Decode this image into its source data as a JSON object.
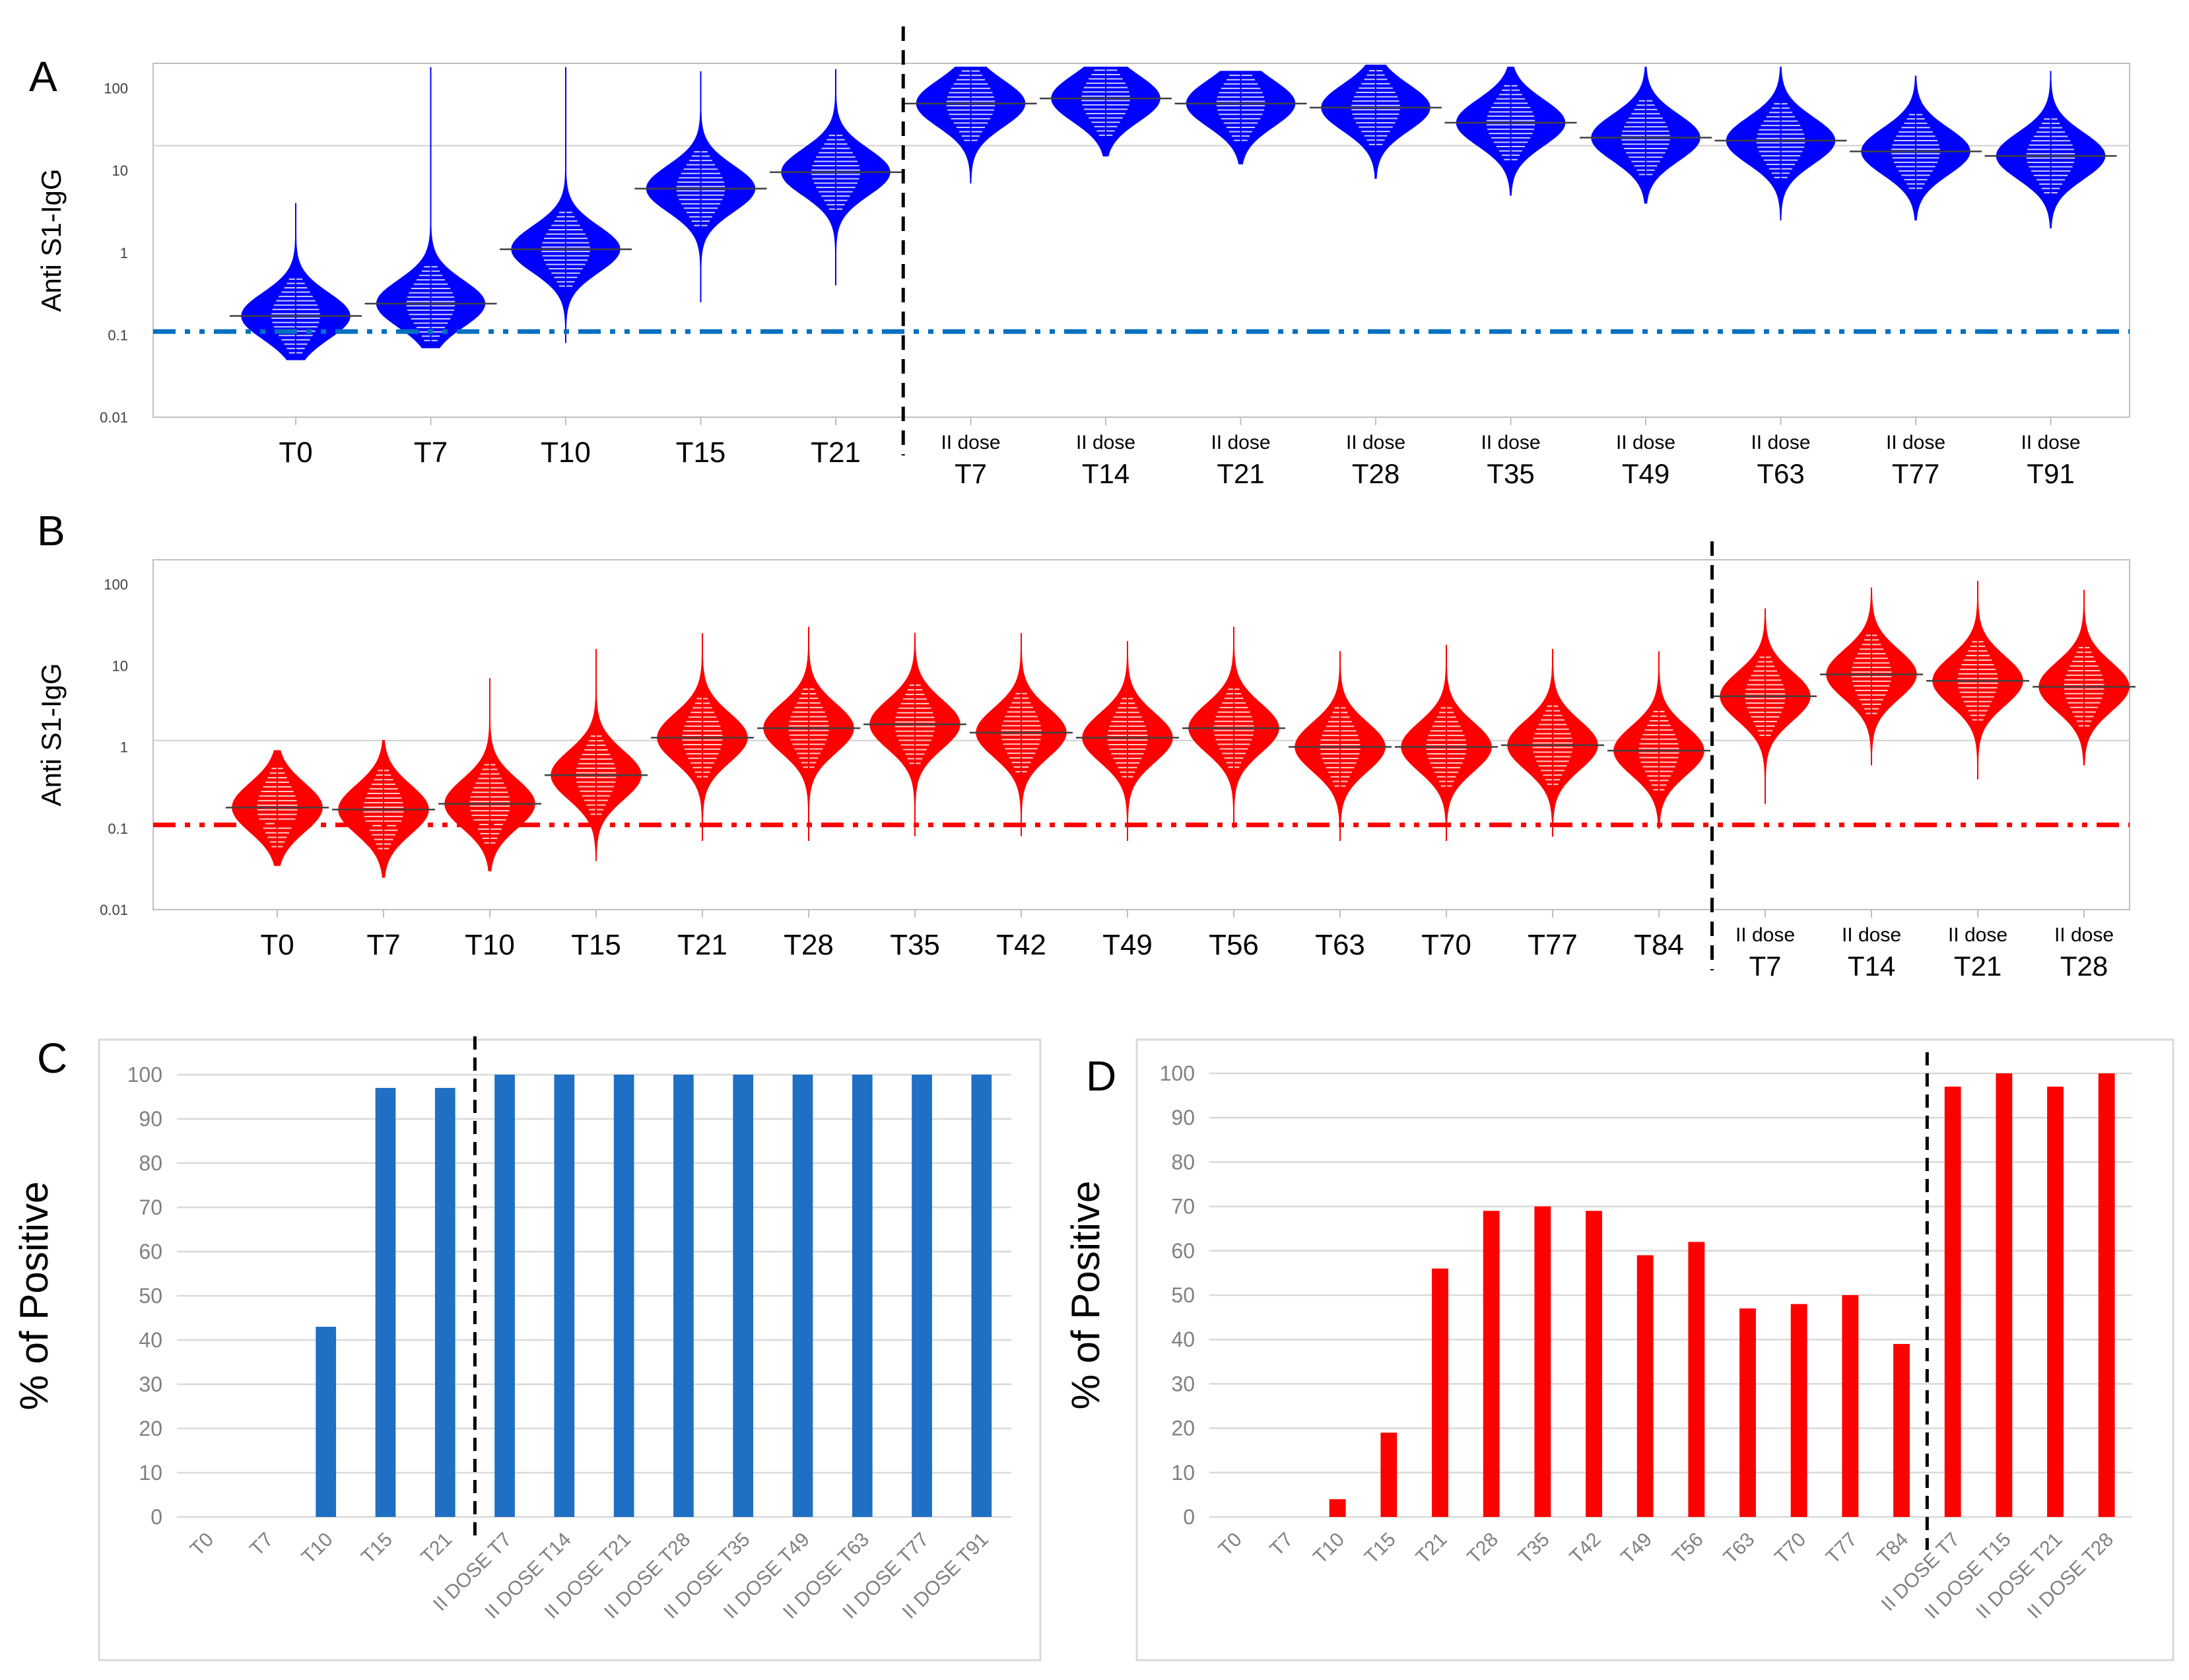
{
  "panels": {
    "A": {
      "letter": "A"
    },
    "B": {
      "letter": "B"
    },
    "C": {
      "letter": "C"
    },
    "D": {
      "letter": "D"
    }
  },
  "colors": {
    "blue_violin": "#0000ff",
    "red_violin": "#ff0000",
    "blue_threshold": "#0070c0",
    "red_threshold": "#ff0000",
    "blue_bar": "#1f6fc5",
    "red_bar": "#ff0000",
    "axis_text": "#808080",
    "gridline": "#d9d9d9"
  },
  "chart_data": [
    {
      "panel": "A",
      "type": "violin",
      "ylabel": "Anti S1-IgG",
      "yscale": "log",
      "ylim": [
        0.01,
        200
      ],
      "yticks": [
        "100",
        "10",
        "1",
        "0.1",
        "0.01"
      ],
      "threshold": 0.11,
      "reference_line": 20,
      "divider_after_index": 4,
      "categories": [
        {
          "top": "",
          "bottom": "T0"
        },
        {
          "top": "",
          "bottom": "T7"
        },
        {
          "top": "",
          "bottom": "T10"
        },
        {
          "top": "",
          "bottom": "T15"
        },
        {
          "top": "",
          "bottom": "T21"
        },
        {
          "top": "II dose",
          "bottom": "T7"
        },
        {
          "top": "II dose",
          "bottom": "T14"
        },
        {
          "top": "II dose",
          "bottom": "T21"
        },
        {
          "top": "II dose",
          "bottom": "T28"
        },
        {
          "top": "II dose",
          "bottom": "T35"
        },
        {
          "top": "II dose",
          "bottom": "T49"
        },
        {
          "top": "II dose",
          "bottom": "T63"
        },
        {
          "top": "II dose",
          "bottom": "T77"
        },
        {
          "top": "II dose",
          "bottom": "T91"
        }
      ],
      "medians": [
        0.17,
        0.24,
        1.1,
        6,
        9.5,
        65,
        75,
        65,
        58,
        38,
        25,
        23,
        17,
        15
      ],
      "mins": [
        0.05,
        0.07,
        0.08,
        0.25,
        0.4,
        7,
        15,
        12,
        8,
        5,
        4,
        2.5,
        2.5,
        2
      ],
      "maxs": [
        4,
        180,
        180,
        160,
        170,
        180,
        180,
        160,
        190,
        180,
        180,
        180,
        140,
        160
      ]
    },
    {
      "panel": "B",
      "type": "violin",
      "ylabel": "Anti S1-IgG",
      "yscale": "log",
      "ylim": [
        0.01,
        200
      ],
      "yticks": [
        "100",
        "10",
        "1",
        "0.1",
        "0.01"
      ],
      "threshold": 0.11,
      "reference_line": 1.2,
      "divider_after_index": 13,
      "categories": [
        {
          "top": "",
          "bottom": "T0"
        },
        {
          "top": "",
          "bottom": "T7"
        },
        {
          "top": "",
          "bottom": "T10"
        },
        {
          "top": "",
          "bottom": "T15"
        },
        {
          "top": "",
          "bottom": "T21"
        },
        {
          "top": "",
          "bottom": "T28"
        },
        {
          "top": "",
          "bottom": "T35"
        },
        {
          "top": "",
          "bottom": "T42"
        },
        {
          "top": "",
          "bottom": "T49"
        },
        {
          "top": "",
          "bottom": "T56"
        },
        {
          "top": "",
          "bottom": "T63"
        },
        {
          "top": "",
          "bottom": "T70"
        },
        {
          "top": "",
          "bottom": "T77"
        },
        {
          "top": "",
          "bottom": "T84"
        },
        {
          "top": "II dose",
          "bottom": "T7"
        },
        {
          "top": "II dose",
          "bottom": "T14"
        },
        {
          "top": "II dose",
          "bottom": "T21"
        },
        {
          "top": "II dose",
          "bottom": "T28"
        }
      ],
      "medians": [
        0.18,
        0.17,
        0.2,
        0.45,
        1.3,
        1.7,
        1.9,
        1.5,
        1.3,
        1.7,
        1.0,
        1.0,
        1.05,
        0.9,
        4.2,
        7.8,
        6.5,
        5.5
      ],
      "mins": [
        0.035,
        0.025,
        0.03,
        0.04,
        0.07,
        0.07,
        0.08,
        0.08,
        0.07,
        0.1,
        0.07,
        0.07,
        0.08,
        0.1,
        0.2,
        0.6,
        0.4,
        0.6
      ],
      "maxs": [
        0.9,
        1.2,
        7,
        16,
        25,
        30,
        25,
        25,
        20,
        30,
        15,
        18,
        16,
        15,
        50,
        90,
        110,
        85
      ]
    },
    {
      "panel": "C",
      "type": "bar",
      "ylabel": "% of Positive",
      "ylim": [
        0,
        100
      ],
      "yticks": [
        "0",
        "10",
        "20",
        "30",
        "40",
        "50",
        "60",
        "70",
        "80",
        "90",
        "100"
      ],
      "divider_after_index": 4,
      "categories": [
        "T0",
        "T7",
        "T10",
        "T15",
        "T21",
        "II DOSE T7",
        "II DOSE T14",
        "II DOSE T21",
        "II DOSE T28",
        "II DOSE T35",
        "II DOSE T49",
        "II DOSE T63",
        "II DOSE T77",
        "II DOSE T91"
      ],
      "values": [
        0,
        0,
        43,
        97,
        97,
        100,
        100,
        100,
        100,
        100,
        100,
        100,
        100,
        100
      ]
    },
    {
      "panel": "D",
      "type": "bar",
      "ylabel": "% of Positive",
      "ylim": [
        0,
        100
      ],
      "yticks": [
        "0",
        "10",
        "20",
        "30",
        "40",
        "50",
        "60",
        "70",
        "80",
        "90",
        "100"
      ],
      "divider_after_index": 13,
      "categories": [
        "T0",
        "T7",
        "T10",
        "T15",
        "T21",
        "T28",
        "T35",
        "T42",
        "T49",
        "T56",
        "T63",
        "T70",
        "T77",
        "T84",
        "II DOSE T7",
        "II DOSE T15",
        "II DOSE T21",
        "II DOSE T28"
      ],
      "values": [
        0,
        0,
        4,
        19,
        56,
        69,
        70,
        69,
        59,
        62,
        47,
        48,
        50,
        39,
        97,
        100,
        97,
        100
      ]
    }
  ]
}
